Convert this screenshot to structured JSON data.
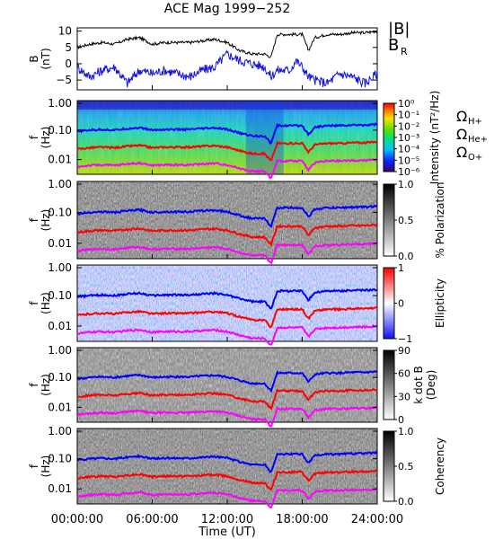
{
  "title": "ACE Mag 1999−252",
  "colors": {
    "b_total": "#000000",
    "b_r": "#1010e0",
    "h_plus": "#0000ff",
    "he_plus": "#ff0000",
    "o_plus": "#ff00ff"
  },
  "x_axis": {
    "label": "Time (UT)",
    "ticks": [
      "00:00:00",
      "06:00:00",
      "12:00:00",
      "18:00:00",
      "24:00:00"
    ]
  },
  "legend": {
    "b_total": "|B|",
    "b_r": "B",
    "b_r_sub": "R",
    "h_plus": "Ω",
    "h_plus_sub": "H+",
    "he_plus": "Ω",
    "he_plus_sub": "He+",
    "o_plus": "Ω",
    "o_plus_sub": "O+"
  },
  "chart_data": [
    {
      "type": "line",
      "panel": "field",
      "ylabel_top": "B",
      "ylabel_bottom": "(nT)",
      "yticks": [
        "10",
        "5",
        "0",
        "−5"
      ],
      "ylim": [
        -8,
        11
      ],
      "xlim": [
        0,
        24
      ],
      "x": [
        0,
        1,
        2,
        3,
        4,
        5,
        6,
        7,
        8,
        9,
        10,
        11,
        12,
        13,
        14,
        15,
        15.5,
        16,
        17,
        17.5,
        18,
        18.5,
        19,
        20,
        21,
        22,
        23,
        24
      ],
      "series": [
        {
          "name": "|B|",
          "values": [
            5,
            6,
            6.5,
            6,
            7.5,
            8,
            6,
            6.5,
            6.5,
            6.5,
            7,
            7.5,
            6.5,
            4,
            3,
            3,
            2,
            9,
            9,
            9,
            9,
            4,
            8,
            9,
            9,
            9.5,
            9.5,
            10
          ]
        },
        {
          "name": "BR",
          "values": [
            -1,
            -4,
            -2,
            -1,
            -6,
            -2,
            -3,
            -2,
            -3,
            -4,
            -2,
            -1,
            3,
            1,
            0,
            -1,
            -4,
            -2,
            -2,
            1,
            -1,
            -4,
            -5,
            -6,
            -3,
            -4,
            -6,
            -3
          ]
        }
      ]
    },
    {
      "type": "heatmap",
      "panel": "power-spectrum",
      "ylabel_top": "f",
      "ylabel_bottom": "(Hz)",
      "yticks": [
        "1.00",
        "0.10",
        "0.01"
      ],
      "colorbar_label": "Intensity (nT²/Hz)",
      "colorbar_ticks": [
        "10⁰",
        "10⁻¹",
        "10⁻²",
        "10⁻³",
        "10⁻⁴",
        "10⁻⁵",
        "10⁻⁶"
      ],
      "colormap": "rainbow"
    },
    {
      "type": "heatmap",
      "panel": "polarization",
      "ylabel_top": "f",
      "ylabel_bottom": "(Hz)",
      "yticks": [
        "1.00",
        "0.10",
        "0.01"
      ],
      "colorbar_label": "% Polarization",
      "colorbar_ticks": [
        "1.0",
        "0.5",
        "0.0"
      ],
      "colormap": "gray"
    },
    {
      "type": "heatmap",
      "panel": "ellipticity",
      "ylabel_top": "f",
      "ylabel_bottom": "(Hz)",
      "yticks": [
        "1.00",
        "0.10",
        "0.01"
      ],
      "colorbar_label": "Ellipticity",
      "colorbar_ticks": [
        "1",
        "0",
        "−1"
      ],
      "colormap": "red-white-blue"
    },
    {
      "type": "heatmap",
      "panel": "k-dot-b",
      "ylabel_top": "f",
      "ylabel_bottom": "(Hz)",
      "yticks": [
        "1.00",
        "0.10",
        "0.01"
      ],
      "colorbar_label": "k dot B",
      "colorbar_label2": "(Deg)",
      "colorbar_ticks": [
        "90",
        "60",
        "30",
        "0"
      ],
      "colormap": "gray"
    },
    {
      "type": "heatmap",
      "panel": "coherency",
      "ylabel_top": "f",
      "ylabel_bottom": "(Hz)",
      "yticks": [
        "1.00",
        "0.10",
        "0.01"
      ],
      "colorbar_label": "Coherency",
      "colorbar_ticks": [
        "1.0",
        "0.5",
        "0.0"
      ],
      "colormap": "gray"
    }
  ],
  "gyrofrequency_lines": {
    "x": [
      0,
      1,
      2,
      3,
      4,
      5,
      6,
      7,
      8,
      9,
      10,
      11,
      12,
      13,
      14,
      15,
      15.5,
      16,
      17,
      17.5,
      18,
      18.5,
      19,
      20,
      21,
      22,
      23,
      24
    ],
    "log_f_h_plus": [
      -1.05,
      -1.0,
      -0.98,
      -1.0,
      -0.95,
      -0.92,
      -1.0,
      -0.98,
      -0.98,
      -0.98,
      -0.95,
      -0.93,
      -0.98,
      -1.1,
      -1.2,
      -1.2,
      -1.45,
      -0.85,
      -0.85,
      -0.85,
      -0.85,
      -1.15,
      -0.9,
      -0.85,
      -0.85,
      -0.83,
      -0.83,
      -0.8
    ],
    "log_f_he_plus": [
      -1.65,
      -1.6,
      -1.58,
      -1.6,
      -1.55,
      -1.52,
      -1.6,
      -1.58,
      -1.58,
      -1.58,
      -1.55,
      -1.53,
      -1.58,
      -1.7,
      -1.8,
      -1.8,
      -2.05,
      -1.45,
      -1.45,
      -1.45,
      -1.45,
      -1.75,
      -1.5,
      -1.45,
      -1.45,
      -1.43,
      -1.43,
      -1.4
    ],
    "log_f_o_plus": [
      -2.25,
      -2.2,
      -2.18,
      -2.2,
      -2.15,
      -2.12,
      -2.2,
      -2.18,
      -2.18,
      -2.18,
      -2.15,
      -2.13,
      -2.18,
      -2.3,
      -2.4,
      -2.4,
      -2.65,
      -2.05,
      -2.05,
      -2.05,
      -2.05,
      -2.35,
      -2.1,
      -2.05,
      -2.05,
      -2.03,
      -2.03,
      -2.0
    ]
  }
}
